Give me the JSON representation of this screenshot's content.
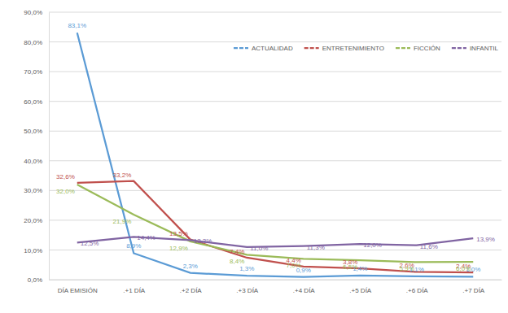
{
  "chart_data": {
    "type": "line",
    "categories": [
      "DÍA EMISIÓN",
      ".+1 DÍA",
      ".+2 DÍA",
      ".+3 DÍA",
      ".+4 DÍA",
      ".+5 DÍA",
      ".+6 DÍA",
      ".+7 DÍA"
    ],
    "series": [
      {
        "name": "ACTUALIDAD",
        "color": "#5b9bd5",
        "values": [
          83.1,
          8.9,
          2.3,
          1.3,
          0.9,
          1.4,
          1.1,
          1.0
        ],
        "value_labels": [
          "83,1%",
          "8,9%",
          "2,3%",
          "1,3%",
          "0,9%",
          "1,4%",
          "1,1%",
          "1,0%"
        ]
      },
      {
        "name": "ENTRETENIMIENTO",
        "color": "#c0504d",
        "values": [
          32.6,
          33.2,
          13.5,
          7.4,
          4.4,
          3.8,
          2.6,
          2.4
        ],
        "value_labels": [
          "32,6%",
          "33,2%",
          "13,5%",
          "7,4%",
          "4,4%",
          "3,8%",
          "2,6%",
          "2,4%"
        ]
      },
      {
        "name": "FICCIÓN",
        "color": "#9bbb59",
        "values": [
          32.0,
          21.9,
          12.9,
          8.4,
          7.0,
          6.5,
          5.9,
          6.0
        ],
        "value_labels": [
          "32,0%",
          "21,9%",
          "12,9%",
          "8,4%",
          "7,0%",
          "6,5%",
          "5,9%",
          "6,0%"
        ]
      },
      {
        "name": "INFANTIL",
        "color": "#8064a2",
        "values": [
          12.5,
          14.4,
          13.3,
          11.0,
          11.3,
          12.0,
          11.6,
          13.9
        ],
        "value_labels": [
          "12,5%",
          "14,4%",
          "13,3%",
          "11,0%",
          "11,3%",
          "12,0%",
          "11,6%",
          "13,9%"
        ]
      }
    ],
    "ylim": [
      0,
      90
    ],
    "yticks": [
      {
        "value": 0,
        "label": "0,0%"
      },
      {
        "value": 10,
        "label": "10,0%"
      },
      {
        "value": 20,
        "label": "20,0%"
      },
      {
        "value": 30,
        "label": "30,0%"
      },
      {
        "value": 40,
        "label": "40,0%"
      },
      {
        "value": 50,
        "label": "50,0%"
      },
      {
        "value": 60,
        "label": "60,0%"
      },
      {
        "value": 70,
        "label": "70,0%"
      },
      {
        "value": 80,
        "label": "80,0%"
      },
      {
        "value": 90,
        "label": "90,0%"
      }
    ],
    "grid": true,
    "legend": "top-right",
    "data_labels": true
  }
}
